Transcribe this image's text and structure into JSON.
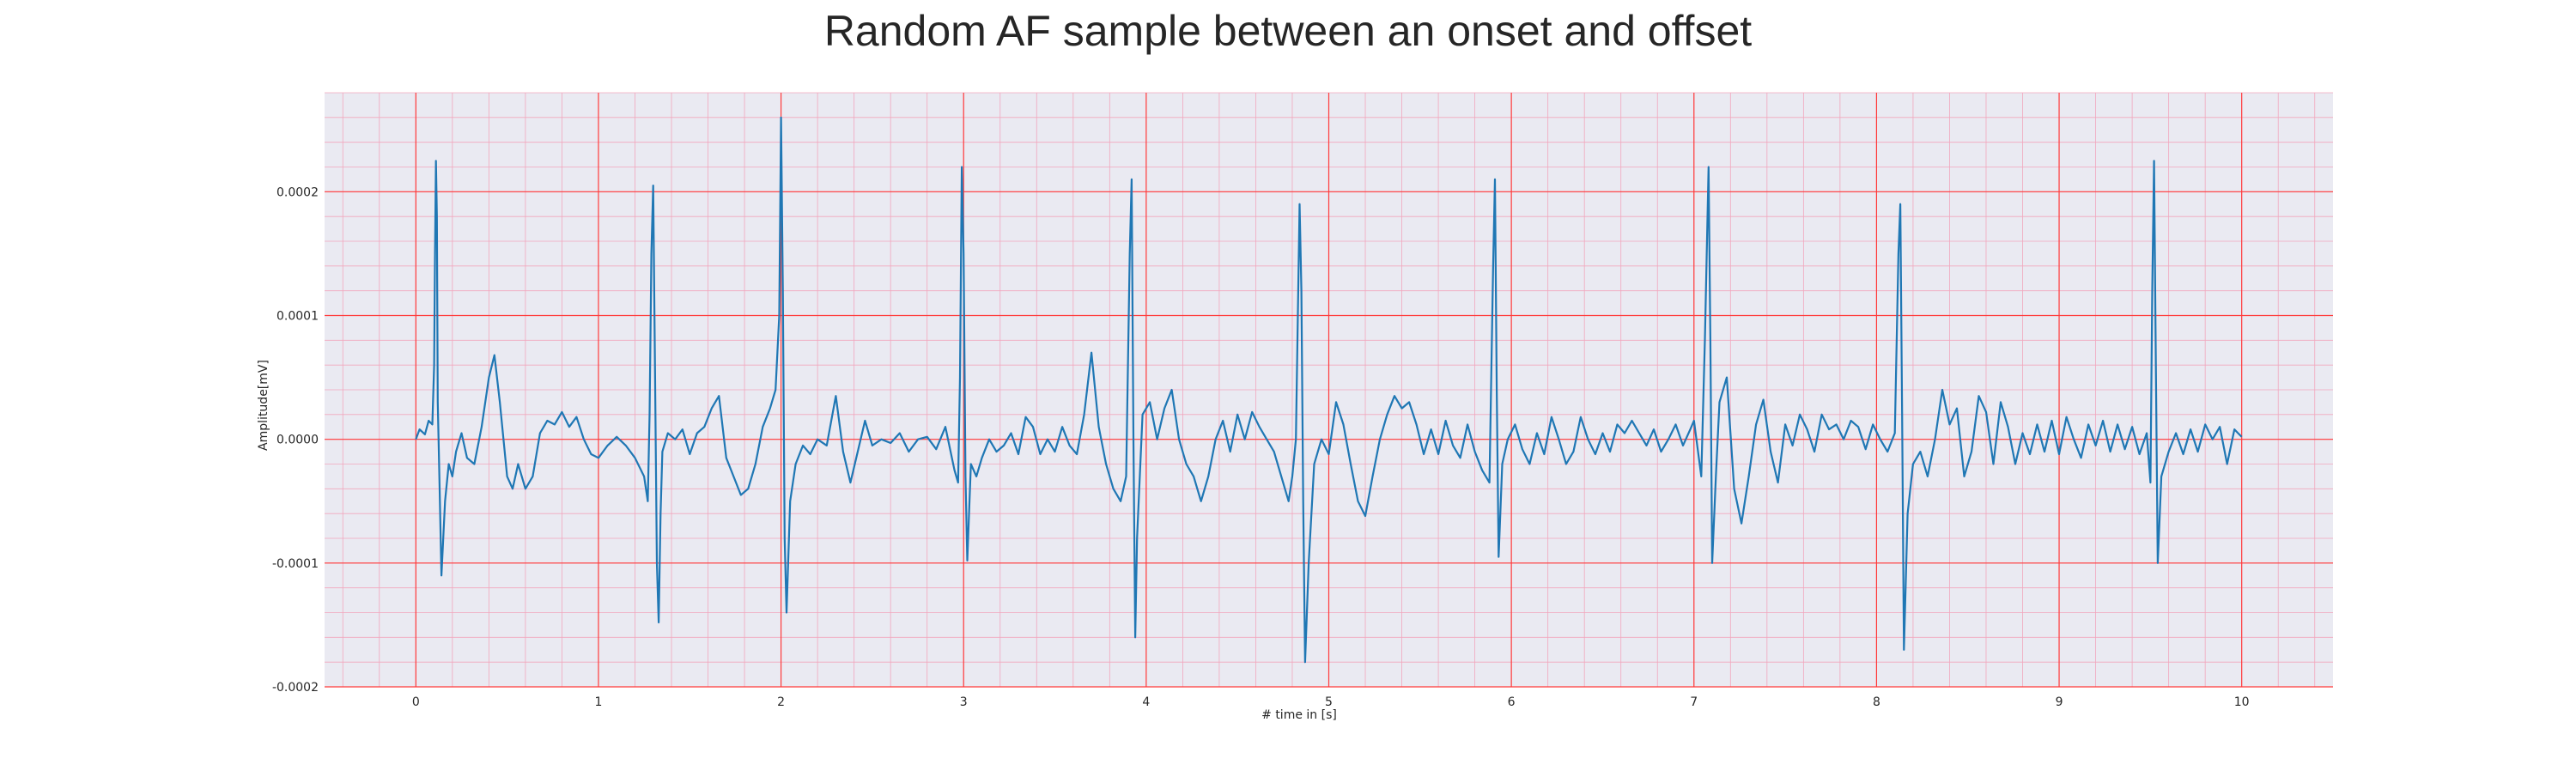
{
  "chart_data": {
    "type": "line",
    "title": "Random AF sample between an onset and offset",
    "xlabel": "# time in [s]",
    "ylabel": "Amplitude[mV]",
    "xlim": [
      -0.5,
      10.5
    ],
    "ylim": [
      -0.0002,
      0.00028
    ],
    "x_ticks": [
      0,
      1,
      2,
      3,
      4,
      5,
      6,
      7,
      8,
      9,
      10
    ],
    "x_tick_labels": [
      "0",
      "1",
      "2",
      "3",
      "4",
      "5",
      "6",
      "7",
      "8",
      "9",
      "10"
    ],
    "y_ticks": [
      -0.0002,
      -0.0001,
      0.0,
      0.0001,
      0.0002
    ],
    "y_tick_labels": [
      "-0.0002",
      "-0.0001",
      "0.0000",
      "0.0001",
      "0.0002"
    ],
    "grid": {
      "major": true,
      "minor": true
    },
    "colors": {
      "line": "#1f77b4",
      "background": "#eaeaf2",
      "major_grid": "#ff3b3b",
      "minor_grid": "#f2a6bd"
    },
    "series": [
      {
        "points": [
          [
            0.0,
            0.0
          ],
          [
            0.02,
            8e-06
          ],
          [
            0.05,
            4e-06
          ],
          [
            0.07,
            1.5e-05
          ],
          [
            0.09,
            1.2e-05
          ],
          [
            0.1,
            6e-05
          ],
          [
            0.105,
            0.00015
          ],
          [
            0.11,
            0.000225
          ],
          [
            0.115,
            0.00018
          ],
          [
            0.12,
            3e-05
          ],
          [
            0.13,
            -4e-05
          ],
          [
            0.14,
            -0.00011
          ],
          [
            0.16,
            -5e-05
          ],
          [
            0.18,
            -2e-05
          ],
          [
            0.2,
            -3e-05
          ],
          [
            0.22,
            -1e-05
          ],
          [
            0.25,
            5e-06
          ],
          [
            0.28,
            -1.5e-05
          ],
          [
            0.32,
            -2e-05
          ],
          [
            0.36,
            1e-05
          ],
          [
            0.4,
            5e-05
          ],
          [
            0.43,
            6.8e-05
          ],
          [
            0.46,
            3e-05
          ],
          [
            0.5,
            -3e-05
          ],
          [
            0.53,
            -4e-05
          ],
          [
            0.56,
            -2e-05
          ],
          [
            0.6,
            -4e-05
          ],
          [
            0.64,
            -3e-05
          ],
          [
            0.68,
            5e-06
          ],
          [
            0.72,
            1.5e-05
          ],
          [
            0.76,
            1.2e-05
          ],
          [
            0.8,
            2.2e-05
          ],
          [
            0.84,
            1e-05
          ],
          [
            0.88,
            1.8e-05
          ],
          [
            0.92,
            0.0
          ],
          [
            0.96,
            -1.2e-05
          ],
          [
            1.0,
            -1.5e-05
          ],
          [
            1.05,
            -5e-06
          ],
          [
            1.1,
            2e-06
          ],
          [
            1.15,
            -5e-06
          ],
          [
            1.2,
            -1.5e-05
          ],
          [
            1.25,
            -3e-05
          ],
          [
            1.27,
            -5e-05
          ],
          [
            1.28,
            2e-05
          ],
          [
            1.29,
            0.00015
          ],
          [
            1.3,
            0.000205
          ],
          [
            1.31,
            5e-05
          ],
          [
            1.32,
            -0.0001
          ],
          [
            1.33,
            -0.000148
          ],
          [
            1.34,
            -6e-05
          ],
          [
            1.35,
            -1e-05
          ],
          [
            1.38,
            5e-06
          ],
          [
            1.42,
            0.0
          ],
          [
            1.46,
            8e-06
          ],
          [
            1.5,
            -1.2e-05
          ],
          [
            1.54,
            5e-06
          ],
          [
            1.58,
            1e-05
          ],
          [
            1.62,
            2.5e-05
          ],
          [
            1.66,
            3.5e-05
          ],
          [
            1.7,
            -1.5e-05
          ],
          [
            1.74,
            -3e-05
          ],
          [
            1.78,
            -4.5e-05
          ],
          [
            1.82,
            -4e-05
          ],
          [
            1.86,
            -2e-05
          ],
          [
            1.9,
            1e-05
          ],
          [
            1.94,
            2.5e-05
          ],
          [
            1.97,
            4e-05
          ],
          [
            1.99,
            0.0001
          ],
          [
            2.0,
            0.00026
          ],
          [
            2.01,
            0.00012
          ],
          [
            2.02,
            -8e-05
          ],
          [
            2.03,
            -0.00014
          ],
          [
            2.05,
            -5e-05
          ],
          [
            2.08,
            -2e-05
          ],
          [
            2.12,
            -5e-06
          ],
          [
            2.16,
            -1.2e-05
          ],
          [
            2.2,
            0.0
          ],
          [
            2.25,
            -5e-06
          ],
          [
            2.3,
            3.5e-05
          ],
          [
            2.34,
            -1e-05
          ],
          [
            2.38,
            -3.5e-05
          ],
          [
            2.42,
            -1e-05
          ],
          [
            2.46,
            1.5e-05
          ],
          [
            2.5,
            -5e-06
          ],
          [
            2.55,
            0.0
          ],
          [
            2.6,
            -3e-06
          ],
          [
            2.65,
            5e-06
          ],
          [
            2.7,
            -1e-05
          ],
          [
            2.75,
            0.0
          ],
          [
            2.8,
            2e-06
          ],
          [
            2.85,
            -8e-06
          ],
          [
            2.9,
            1e-05
          ],
          [
            2.95,
            -2.5e-05
          ],
          [
            2.97,
            -3.5e-05
          ],
          [
            2.98,
            5e-05
          ],
          [
            2.99,
            0.00022
          ],
          [
            3.0,
            0.00015
          ],
          [
            3.01,
            -3e-05
          ],
          [
            3.02,
            -9.8e-05
          ],
          [
            3.04,
            -2e-05
          ],
          [
            3.07,
            -3e-05
          ],
          [
            3.1,
            -1.5e-05
          ],
          [
            3.14,
            0.0
          ],
          [
            3.18,
            -1e-05
          ],
          [
            3.22,
            -5e-06
          ],
          [
            3.26,
            5e-06
          ],
          [
            3.3,
            -1.2e-05
          ],
          [
            3.34,
            1.8e-05
          ],
          [
            3.38,
            1e-05
          ],
          [
            3.42,
            -1.2e-05
          ],
          [
            3.46,
            0.0
          ],
          [
            3.5,
            -1e-05
          ],
          [
            3.54,
            1e-05
          ],
          [
            3.58,
            -5e-06
          ],
          [
            3.62,
            -1.2e-05
          ],
          [
            3.66,
            2e-05
          ],
          [
            3.7,
            7e-05
          ],
          [
            3.74,
            1e-05
          ],
          [
            3.78,
            -2e-05
          ],
          [
            3.82,
            -4e-05
          ],
          [
            3.86,
            -5e-05
          ],
          [
            3.89,
            -3e-05
          ],
          [
            3.91,
            0.00015
          ],
          [
            3.92,
            0.00021
          ],
          [
            3.93,
            0.0
          ],
          [
            3.94,
            -0.00016
          ],
          [
            3.95,
            -8e-05
          ],
          [
            3.98,
            2e-05
          ],
          [
            4.02,
            3e-05
          ],
          [
            4.06,
            0.0
          ],
          [
            4.1,
            2.5e-05
          ],
          [
            4.14,
            4e-05
          ],
          [
            4.18,
            0.0
          ],
          [
            4.22,
            -2e-05
          ],
          [
            4.26,
            -3e-05
          ],
          [
            4.3,
            -5e-05
          ],
          [
            4.34,
            -3e-05
          ],
          [
            4.38,
            0.0
          ],
          [
            4.42,
            1.5e-05
          ],
          [
            4.46,
            -1e-05
          ],
          [
            4.5,
            2e-05
          ],
          [
            4.54,
            0.0
          ],
          [
            4.58,
            2.2e-05
          ],
          [
            4.62,
            1e-05
          ],
          [
            4.66,
            0.0
          ],
          [
            4.7,
            -1e-05
          ],
          [
            4.74,
            -3e-05
          ],
          [
            4.78,
            -5e-05
          ],
          [
            4.8,
            -3e-05
          ],
          [
            4.82,
            0.0
          ],
          [
            4.84,
            0.00019
          ],
          [
            4.85,
            0.00012
          ],
          [
            4.86,
            -5e-05
          ],
          [
            4.87,
            -0.00018
          ],
          [
            4.89,
            -0.0001
          ],
          [
            4.92,
            -2e-05
          ],
          [
            4.96,
            0.0
          ],
          [
            5.0,
            -1.2e-05
          ],
          [
            5.04,
            3e-05
          ],
          [
            5.08,
            1.2e-05
          ],
          [
            5.12,
            -2e-05
          ],
          [
            5.16,
            -5e-05
          ],
          [
            5.2,
            -6.2e-05
          ],
          [
            5.24,
            -3e-05
          ],
          [
            5.28,
            0.0
          ],
          [
            5.32,
            2e-05
          ],
          [
            5.36,
            3.5e-05
          ],
          [
            5.4,
            2.5e-05
          ],
          [
            5.44,
            3e-05
          ],
          [
            5.48,
            1.2e-05
          ],
          [
            5.52,
            -1.2e-05
          ],
          [
            5.56,
            8e-06
          ],
          [
            5.6,
            -1.2e-05
          ],
          [
            5.64,
            1.5e-05
          ],
          [
            5.68,
            -5e-06
          ],
          [
            5.72,
            -1.5e-05
          ],
          [
            5.76,
            1.2e-05
          ],
          [
            5.8,
            -1e-05
          ],
          [
            5.84,
            -2.5e-05
          ],
          [
            5.88,
            -3.5e-05
          ],
          [
            5.9,
            0.00014
          ],
          [
            5.91,
            0.00021
          ],
          [
            5.92,
            4e-05
          ],
          [
            5.93,
            -9.5e-05
          ],
          [
            5.95,
            -2e-05
          ],
          [
            5.98,
            0.0
          ],
          [
            6.02,
            1.2e-05
          ],
          [
            6.06,
            -8e-06
          ],
          [
            6.1,
            -2e-05
          ],
          [
            6.14,
            5e-06
          ],
          [
            6.18,
            -1.2e-05
          ],
          [
            6.22,
            1.8e-05
          ],
          [
            6.26,
            0.0
          ],
          [
            6.3,
            -2e-05
          ],
          [
            6.34,
            -1e-05
          ],
          [
            6.38,
            1.8e-05
          ],
          [
            6.42,
            0.0
          ],
          [
            6.46,
            -1.2e-05
          ],
          [
            6.5,
            5e-06
          ],
          [
            6.54,
            -1e-05
          ],
          [
            6.58,
            1.2e-05
          ],
          [
            6.62,
            5e-06
          ],
          [
            6.66,
            1.5e-05
          ],
          [
            6.7,
            5e-06
          ],
          [
            6.74,
            -5e-06
          ],
          [
            6.78,
            8e-06
          ],
          [
            6.82,
            -1e-05
          ],
          [
            6.86,
            0.0
          ],
          [
            6.9,
            1.2e-05
          ],
          [
            6.94,
            -5e-06
          ],
          [
            6.98,
            8e-06
          ],
          [
            7.0,
            1.5e-05
          ],
          [
            7.04,
            -3e-05
          ],
          [
            7.06,
            8e-05
          ],
          [
            7.08,
            0.00022
          ],
          [
            7.09,
            8e-05
          ],
          [
            7.1,
            -0.0001
          ],
          [
            7.12,
            -3e-05
          ],
          [
            7.14,
            3e-05
          ],
          [
            7.18,
            5e-05
          ],
          [
            7.22,
            -4e-05
          ],
          [
            7.26,
            -6.8e-05
          ],
          [
            7.3,
            -3e-05
          ],
          [
            7.34,
            1.2e-05
          ],
          [
            7.38,
            3.2e-05
          ],
          [
            7.42,
            -1e-05
          ],
          [
            7.46,
            -3.5e-05
          ],
          [
            7.5,
            1.2e-05
          ],
          [
            7.54,
            -5e-06
          ],
          [
            7.58,
            2e-05
          ],
          [
            7.62,
            8e-06
          ],
          [
            7.66,
            -1e-05
          ],
          [
            7.7,
            2e-05
          ],
          [
            7.74,
            8e-06
          ],
          [
            7.78,
            1.2e-05
          ],
          [
            7.82,
            0.0
          ],
          [
            7.86,
            1.5e-05
          ],
          [
            7.9,
            1e-05
          ],
          [
            7.94,
            -8e-06
          ],
          [
            7.98,
            1.2e-05
          ],
          [
            8.02,
            0.0
          ],
          [
            8.06,
            -1e-05
          ],
          [
            8.1,
            5e-06
          ],
          [
            8.12,
            0.00015
          ],
          [
            8.13,
            0.00019
          ],
          [
            8.14,
            2e-05
          ],
          [
            8.15,
            -0.00017
          ],
          [
            8.17,
            -6e-05
          ],
          [
            8.2,
            -2e-05
          ],
          [
            8.24,
            -1e-05
          ],
          [
            8.28,
            -3e-05
          ],
          [
            8.32,
            0.0
          ],
          [
            8.36,
            4e-05
          ],
          [
            8.4,
            1.2e-05
          ],
          [
            8.44,
            2.5e-05
          ],
          [
            8.48,
            -3e-05
          ],
          [
            8.52,
            -1e-05
          ],
          [
            8.56,
            3.5e-05
          ],
          [
            8.6,
            2.2e-05
          ],
          [
            8.64,
            -2e-05
          ],
          [
            8.68,
            3e-05
          ],
          [
            8.72,
            1e-05
          ],
          [
            8.76,
            -2e-05
          ],
          [
            8.8,
            5e-06
          ],
          [
            8.84,
            -1.2e-05
          ],
          [
            8.88,
            1.2e-05
          ],
          [
            8.92,
            -1e-05
          ],
          [
            8.96,
            1.5e-05
          ],
          [
            9.0,
            -1.2e-05
          ],
          [
            9.04,
            1.8e-05
          ],
          [
            9.08,
            0.0
          ],
          [
            9.12,
            -1.5e-05
          ],
          [
            9.16,
            1.2e-05
          ],
          [
            9.2,
            -5e-06
          ],
          [
            9.24,
            1.5e-05
          ],
          [
            9.28,
            -1e-05
          ],
          [
            9.32,
            1.2e-05
          ],
          [
            9.36,
            -8e-06
          ],
          [
            9.4,
            1e-05
          ],
          [
            9.44,
            -1.2e-05
          ],
          [
            9.48,
            5e-06
          ],
          [
            9.5,
            -3.5e-05
          ],
          [
            9.51,
            0.00012
          ],
          [
            9.52,
            0.000225
          ],
          [
            9.53,
            6e-05
          ],
          [
            9.54,
            -0.0001
          ],
          [
            9.56,
            -3e-05
          ],
          [
            9.6,
            -1e-05
          ],
          [
            9.64,
            5e-06
          ],
          [
            9.68,
            -1.2e-05
          ],
          [
            9.72,
            8e-06
          ],
          [
            9.76,
            -1e-05
          ],
          [
            9.8,
            1.2e-05
          ],
          [
            9.84,
            0.0
          ],
          [
            9.88,
            1e-05
          ],
          [
            9.92,
            -2e-05
          ],
          [
            9.96,
            8e-06
          ],
          [
            9.98,
            5e-06
          ],
          [
            10.0,
            2e-06
          ]
        ]
      }
    ]
  }
}
